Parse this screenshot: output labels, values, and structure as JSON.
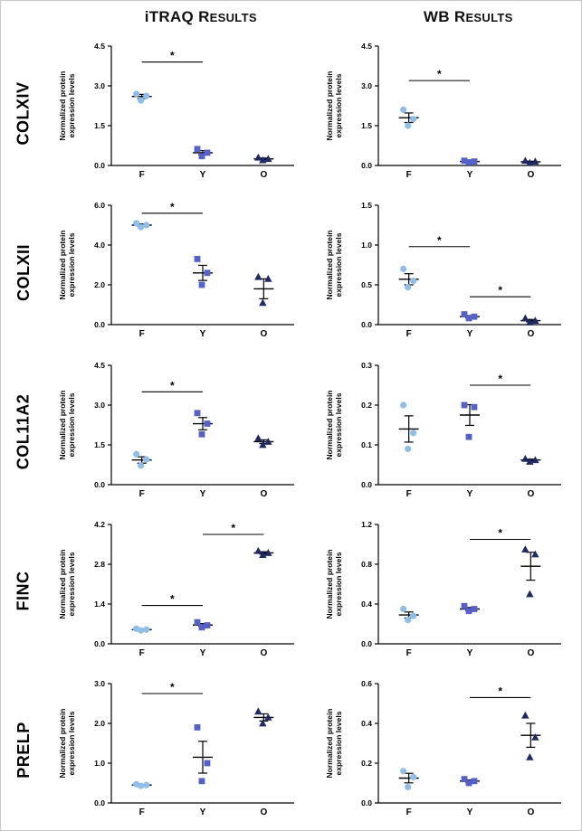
{
  "figure": {
    "columns": [
      {
        "title_main": "iTRAQ R",
        "title_small": "ESULTS"
      },
      {
        "title_main": "WB R",
        "title_small": "ESULTS"
      }
    ],
    "rows": [
      "COLXIV",
      "COLXII",
      "COL11A2",
      "FINC",
      "PRELP"
    ],
    "ylabel_line1": "Normalized protein",
    "ylabel_line2": "expression levels",
    "x_categories": [
      "F",
      "Y",
      "O"
    ]
  },
  "colors": {
    "f_circle": "#8FBFE8",
    "y_square": "#5560C8",
    "o_triangle": "#1F2A63",
    "axis": "#000000"
  },
  "chart_data": [
    {
      "row": "COLXIV",
      "assay": "iTRAQ",
      "type": "scatter",
      "ylim": [
        0,
        4.5
      ],
      "yticks": [
        0,
        1.5,
        3.0,
        4.5
      ],
      "ytick_labels": [
        "0.0",
        "1.5",
        "3.0",
        "4.5"
      ],
      "categories": [
        "F",
        "Y",
        "O"
      ],
      "ylabel": "Normalized protein expression levels",
      "series": [
        {
          "name": "F",
          "marker": "circle",
          "values": [
            2.7,
            2.62,
            2.45
          ],
          "mean": 2.6,
          "sem": 0.08
        },
        {
          "name": "Y",
          "marker": "square",
          "values": [
            0.62,
            0.48,
            0.35
          ],
          "mean": 0.48,
          "sem": 0.08
        },
        {
          "name": "O",
          "marker": "triangle",
          "values": [
            0.3,
            0.25,
            0.2
          ],
          "mean": 0.25,
          "sem": 0.03
        }
      ],
      "significance": [
        {
          "from": "F",
          "to": "Y",
          "y": 3.9,
          "label": "*"
        }
      ]
    },
    {
      "row": "COLXIV",
      "assay": "WB",
      "type": "scatter",
      "ylim": [
        0,
        4.5
      ],
      "yticks": [
        0,
        1.5,
        3.0,
        4.5
      ],
      "ytick_labels": [
        "0.0",
        "1.5",
        "3.0",
        "4.5"
      ],
      "categories": [
        "F",
        "Y",
        "O"
      ],
      "ylabel": "Normalized protein expression levels",
      "series": [
        {
          "name": "F",
          "marker": "circle",
          "values": [
            2.1,
            1.75,
            1.5
          ],
          "mean": 1.8,
          "sem": 0.18
        },
        {
          "name": "Y",
          "marker": "square",
          "values": [
            0.18,
            0.15,
            0.12
          ],
          "mean": 0.15,
          "sem": 0.02
        },
        {
          "name": "O",
          "marker": "triangle",
          "values": [
            0.18,
            0.15,
            0.1
          ],
          "mean": 0.14,
          "sem": 0.02
        }
      ],
      "significance": [
        {
          "from": "F",
          "to": "Y",
          "y": 3.2,
          "label": "*"
        }
      ]
    },
    {
      "row": "COLXII",
      "assay": "iTRAQ",
      "type": "scatter",
      "ylim": [
        0,
        6.0
      ],
      "yticks": [
        0,
        2.0,
        4.0,
        6.0
      ],
      "ytick_labels": [
        "0.0",
        "2.0",
        "4.0",
        "6.0"
      ],
      "categories": [
        "F",
        "Y",
        "O"
      ],
      "ylabel": "Normalized protein expression levels",
      "series": [
        {
          "name": "F",
          "marker": "circle",
          "values": [
            5.1,
            5.0,
            4.9
          ],
          "mean": 5.0,
          "sem": 0.06
        },
        {
          "name": "Y",
          "marker": "square",
          "values": [
            3.3,
            2.6,
            2.0
          ],
          "mean": 2.6,
          "sem": 0.38
        },
        {
          "name": "O",
          "marker": "triangle",
          "values": [
            2.4,
            2.3,
            1.1
          ],
          "mean": 1.8,
          "sem": 0.5
        }
      ],
      "significance": [
        {
          "from": "F",
          "to": "Y",
          "y": 5.6,
          "label": "*"
        }
      ]
    },
    {
      "row": "COLXII",
      "assay": "WB",
      "type": "scatter",
      "ylim": [
        0,
        1.5
      ],
      "yticks": [
        0,
        0.5,
        1.0,
        1.5
      ],
      "ytick_labels": [
        "0.0",
        "0.5",
        "1.0",
        "1.5"
      ],
      "categories": [
        "F",
        "Y",
        "O"
      ],
      "ylabel": "Normalized protein expression levels",
      "series": [
        {
          "name": "F",
          "marker": "circle",
          "values": [
            0.7,
            0.55,
            0.47
          ],
          "mean": 0.57,
          "sem": 0.07
        },
        {
          "name": "Y",
          "marker": "square",
          "values": [
            0.13,
            0.1,
            0.08
          ],
          "mean": 0.1,
          "sem": 0.015
        },
        {
          "name": "O",
          "marker": "triangle",
          "values": [
            0.08,
            0.05,
            0.03
          ],
          "mean": 0.05,
          "sem": 0.015
        }
      ],
      "significance": [
        {
          "from": "F",
          "to": "Y",
          "y": 0.98,
          "label": "*"
        },
        {
          "from": "Y",
          "to": "O",
          "y": 0.35,
          "label": "*"
        }
      ]
    },
    {
      "row": "COL11A2",
      "assay": "iTRAQ",
      "type": "scatter",
      "ylim": [
        0,
        4.5
      ],
      "yticks": [
        0,
        1.5,
        3.0,
        4.5
      ],
      "ytick_labels": [
        "0.0",
        "1.5",
        "3.0",
        "4.5"
      ],
      "categories": [
        "F",
        "Y",
        "O"
      ],
      "ylabel": "Normalized protein expression levels",
      "series": [
        {
          "name": "F",
          "marker": "circle",
          "values": [
            1.15,
            0.95,
            0.72
          ],
          "mean": 0.93,
          "sem": 0.12
        },
        {
          "name": "Y",
          "marker": "square",
          "values": [
            2.7,
            2.3,
            1.9
          ],
          "mean": 2.3,
          "sem": 0.23
        },
        {
          "name": "O",
          "marker": "triangle",
          "values": [
            1.75,
            1.62,
            1.5
          ],
          "mean": 1.62,
          "sem": 0.07
        }
      ],
      "significance": [
        {
          "from": "F",
          "to": "Y",
          "y": 3.5,
          "label": "*"
        }
      ]
    },
    {
      "row": "COL11A2",
      "assay": "WB",
      "type": "scatter",
      "ylim": [
        0,
        0.3
      ],
      "yticks": [
        0,
        0.1,
        0.2,
        0.3
      ],
      "ytick_labels": [
        "0.0",
        "0.1",
        "0.2",
        "0.3"
      ],
      "categories": [
        "F",
        "Y",
        "O"
      ],
      "ylabel": "Normalized protein expression levels",
      "series": [
        {
          "name": "F",
          "marker": "circle",
          "values": [
            0.2,
            0.13,
            0.09
          ],
          "mean": 0.14,
          "sem": 0.033
        },
        {
          "name": "Y",
          "marker": "square",
          "values": [
            0.2,
            0.195,
            0.12
          ],
          "mean": 0.175,
          "sem": 0.026
        },
        {
          "name": "O",
          "marker": "triangle",
          "values": [
            0.065,
            0.062,
            0.058
          ],
          "mean": 0.062,
          "sem": 0.002
        }
      ],
      "significance": [
        {
          "from": "Y",
          "to": "O",
          "y": 0.25,
          "label": "*"
        }
      ]
    },
    {
      "row": "FINC",
      "assay": "iTRAQ",
      "type": "scatter",
      "ylim": [
        0,
        4.2
      ],
      "yticks": [
        0,
        1.4,
        2.8,
        4.2
      ],
      "ytick_labels": [
        "0.0",
        "1.4",
        "2.8",
        "4.2"
      ],
      "categories": [
        "F",
        "Y",
        "O"
      ],
      "ylabel": "Normalized protein expression levels",
      "series": [
        {
          "name": "F",
          "marker": "circle",
          "values": [
            0.53,
            0.5,
            0.47
          ],
          "mean": 0.5,
          "sem": 0.02
        },
        {
          "name": "Y",
          "marker": "square",
          "values": [
            0.76,
            0.65,
            0.58
          ],
          "mean": 0.66,
          "sem": 0.05
        },
        {
          "name": "O",
          "marker": "triangle",
          "values": [
            3.27,
            3.2,
            3.13
          ],
          "mean": 3.2,
          "sem": 0.04
        }
      ],
      "significance": [
        {
          "from": "F",
          "to": "Y",
          "y": 1.35,
          "label": "*"
        },
        {
          "from": "Y",
          "to": "O",
          "y": 3.85,
          "label": "*"
        }
      ]
    },
    {
      "row": "FINC",
      "assay": "WB",
      "type": "scatter",
      "ylim": [
        0,
        1.2
      ],
      "yticks": [
        0,
        0.4,
        0.8,
        1.2
      ],
      "ytick_labels": [
        "0.0",
        "0.4",
        "0.8",
        "1.2"
      ],
      "categories": [
        "F",
        "Y",
        "O"
      ],
      "ylabel": "Normalized protein expression levels",
      "series": [
        {
          "name": "F",
          "marker": "circle",
          "values": [
            0.35,
            0.28,
            0.24
          ],
          "mean": 0.29,
          "sem": 0.03
        },
        {
          "name": "Y",
          "marker": "square",
          "values": [
            0.38,
            0.35,
            0.33
          ],
          "mean": 0.35,
          "sem": 0.015
        },
        {
          "name": "O",
          "marker": "triangle",
          "values": [
            0.95,
            0.9,
            0.5
          ],
          "mean": 0.78,
          "sem": 0.14
        }
      ],
      "significance": [
        {
          "from": "Y",
          "to": "O",
          "y": 1.05,
          "label": "*"
        }
      ]
    },
    {
      "row": "PRELP",
      "assay": "iTRAQ",
      "type": "scatter",
      "ylim": [
        0,
        3.0
      ],
      "yticks": [
        0,
        1.0,
        2.0,
        3.0
      ],
      "ytick_labels": [
        "0.0",
        "1.0",
        "2.0",
        "3.0"
      ],
      "categories": [
        "F",
        "Y",
        "O"
      ],
      "ylabel": "Normalized protein expression levels",
      "series": [
        {
          "name": "F",
          "marker": "circle",
          "values": [
            0.47,
            0.45,
            0.43
          ],
          "mean": 0.45,
          "sem": 0.012
        },
        {
          "name": "Y",
          "marker": "square",
          "values": [
            1.9,
            1.0,
            0.55
          ],
          "mean": 1.15,
          "sem": 0.4
        },
        {
          "name": "O",
          "marker": "triangle",
          "values": [
            2.3,
            2.15,
            2.0
          ],
          "mean": 2.15,
          "sem": 0.09
        }
      ],
      "significance": [
        {
          "from": "F",
          "to": "Y",
          "y": 2.75,
          "label": "*"
        }
      ]
    },
    {
      "row": "PRELP",
      "assay": "WB",
      "type": "scatter",
      "ylim": [
        0,
        0.6
      ],
      "yticks": [
        0,
        0.2,
        0.4,
        0.6
      ],
      "ytick_labels": [
        "0.0",
        "0.2",
        "0.4",
        "0.6"
      ],
      "categories": [
        "F",
        "Y",
        "O"
      ],
      "ylabel": "Normalized protein expression levels",
      "series": [
        {
          "name": "F",
          "marker": "circle",
          "values": [
            0.16,
            0.13,
            0.08
          ],
          "mean": 0.125,
          "sem": 0.024
        },
        {
          "name": "Y",
          "marker": "square",
          "values": [
            0.12,
            0.11,
            0.1
          ],
          "mean": 0.11,
          "sem": 0.006
        },
        {
          "name": "O",
          "marker": "triangle",
          "values": [
            0.44,
            0.33,
            0.23
          ],
          "mean": 0.34,
          "sem": 0.06
        }
      ],
      "significance": [
        {
          "from": "Y",
          "to": "O",
          "y": 0.53,
          "label": "*"
        }
      ]
    }
  ]
}
